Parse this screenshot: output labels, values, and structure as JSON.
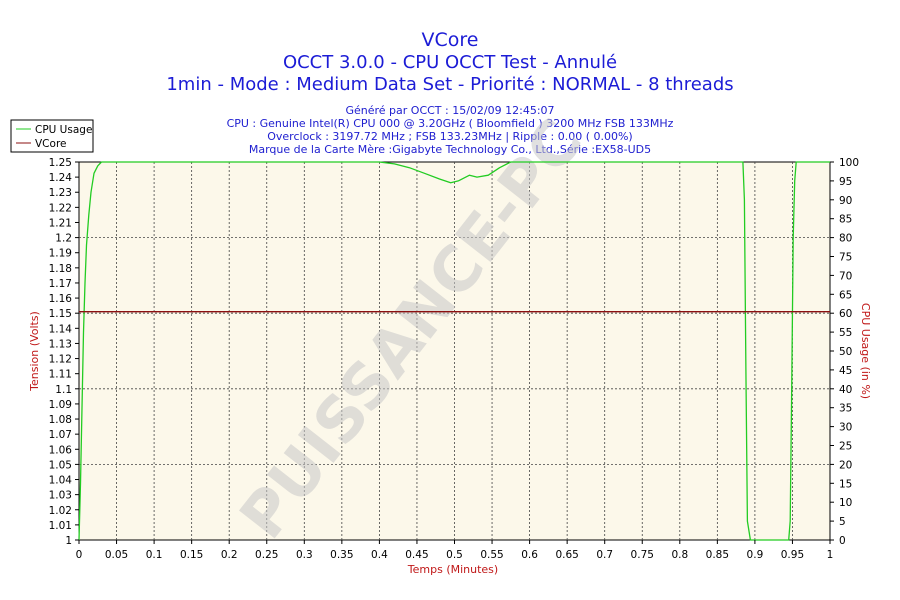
{
  "chart_data": {
    "type": "line",
    "title": "VCore",
    "subtitle_lines": [
      "OCCT 3.0.0 - CPU OCCT Test - Annulé",
      "1min - Mode : Medium Data Set - Priorité : NORMAL - 8 threads"
    ],
    "info_lines": [
      "Généré par OCCT : 15/02/09 12:45:07",
      "CPU : Genuine Intel(R) CPU 000 @ 3.20GHz ( Bloomfield ) 3200 MHz FSB 133MHz",
      "Overclock : 3197.72 MHz ; FSB 133.23MHz | Ripple : 0.00 ( 0.00%)",
      "Marque de la Carte Mère :Gigabyte Technology Co., Ltd.,Série :EX58-UD5"
    ],
    "xlabel": "Temps (Minutes)",
    "ylabel": "Tension (Volts)",
    "y2label": "CPU Usage (in %)",
    "xlim": [
      0,
      1
    ],
    "ylim": [
      1,
      1.25
    ],
    "y2lim": [
      0,
      100
    ],
    "x_ticks": [
      "0",
      "0.05",
      "0.1",
      "0.15",
      "0.2",
      "0.25",
      "0.3",
      "0.35",
      "0.4",
      "0.45",
      "0.5",
      "0.55",
      "0.6",
      "0.65",
      "0.7",
      "0.75",
      "0.8",
      "0.85",
      "0.9",
      "0.95",
      "1"
    ],
    "y_ticks": [
      "1",
      "1.01",
      "1.02",
      "1.03",
      "1.04",
      "1.05",
      "1.06",
      "1.07",
      "1.08",
      "1.09",
      "1.1",
      "1.11",
      "1.12",
      "1.13",
      "1.14",
      "1.15",
      "1.16",
      "1.17",
      "1.18",
      "1.19",
      "1.2",
      "1.21",
      "1.22",
      "1.23",
      "1.24",
      "1.25"
    ],
    "y2_ticks": [
      "0",
      "5",
      "10",
      "15",
      "20",
      "25",
      "30",
      "35",
      "40",
      "45",
      "50",
      "55",
      "60",
      "65",
      "70",
      "75",
      "80",
      "85",
      "90",
      "95",
      "100"
    ],
    "grid": true,
    "legend_position": "top-left",
    "watermark": "PUISSANCE-PC",
    "series": [
      {
        "name": "CPU Usage",
        "axis": "right",
        "color": "#22cc22",
        "x": [
          0.0,
          0.002,
          0.004,
          0.006,
          0.008,
          0.01,
          0.013,
          0.016,
          0.02,
          0.025,
          0.03,
          0.05,
          0.1,
          0.15,
          0.2,
          0.25,
          0.3,
          0.35,
          0.4,
          0.42,
          0.44,
          0.46,
          0.48,
          0.495,
          0.505,
          0.52,
          0.53,
          0.545,
          0.56,
          0.575,
          0.59,
          0.65,
          0.7,
          0.75,
          0.8,
          0.85,
          0.884,
          0.886,
          0.888,
          0.89,
          0.894,
          0.945,
          0.947,
          0.949,
          0.951,
          0.953,
          0.955,
          0.96,
          0.97,
          1.0
        ],
        "y": [
          0,
          15,
          35,
          55,
          68,
          78,
          86,
          92,
          97,
          99,
          100,
          100,
          100,
          100,
          100,
          100,
          100,
          100,
          100,
          99.5,
          98.5,
          97,
          95.5,
          94.5,
          95,
          96.5,
          96,
          96.5,
          98.5,
          100,
          100,
          100,
          100,
          100,
          100,
          100,
          100,
          90,
          45,
          5,
          0,
          0,
          5,
          40,
          80,
          95,
          100,
          100,
          100,
          100
        ]
      },
      {
        "name": "VCore",
        "axis": "left",
        "color": "#8b1010",
        "x": [
          0,
          1
        ],
        "y": [
          1.151,
          1.151
        ]
      }
    ]
  }
}
